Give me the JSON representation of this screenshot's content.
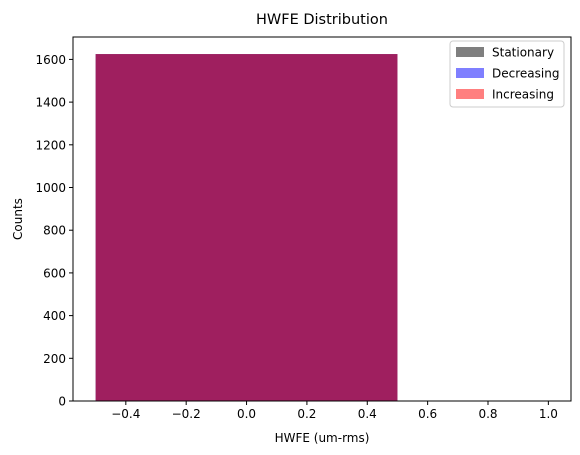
{
  "chart_data": {
    "type": "bar",
    "title": "HWFE Distribution",
    "xlabel": "HWFE (um-rms)",
    "ylabel": "Counts",
    "xlim": [
      -0.575,
      1.075
    ],
    "ylim": [
      0,
      1705
    ],
    "xticks": [
      -0.4,
      -0.2,
      0.0,
      0.2,
      0.4,
      0.6,
      0.8,
      1.0
    ],
    "xtick_labels": [
      "−0.4",
      "−0.2",
      "0.0",
      "0.2",
      "0.4",
      "0.6",
      "0.8",
      "1.0"
    ],
    "yticks": [
      0,
      200,
      400,
      600,
      800,
      1000,
      1200,
      1400,
      1600
    ],
    "ytick_labels": [
      "0",
      "200",
      "400",
      "600",
      "800",
      "1000",
      "1200",
      "1400",
      "1600"
    ],
    "legend_position": "top-right",
    "series": [
      {
        "name": "Stationary",
        "color": "#000000",
        "alpha": 0.5,
        "bins": [
          {
            "x0": -0.5,
            "x1": 0.5,
            "count": 1625
          }
        ]
      },
      {
        "name": "Decreasing",
        "color": "#0000ff",
        "alpha": 0.5,
        "bins": [
          {
            "x0": -0.5,
            "x1": 0.5,
            "count": 1625
          }
        ]
      },
      {
        "name": "Increasing",
        "color": "#ff0000",
        "alpha": 0.5,
        "bins": [
          {
            "x0": -0.5,
            "x1": 0.5,
            "count": 1625
          }
        ]
      }
    ]
  }
}
